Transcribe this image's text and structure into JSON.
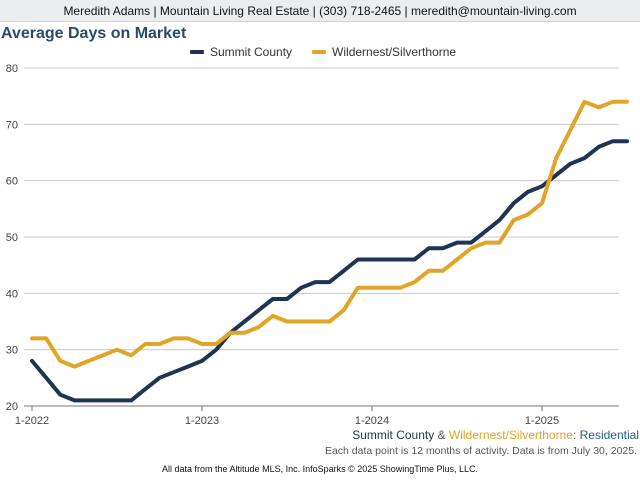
{
  "header": {
    "contact": "Meredith Adams | Mountain Living Real Estate | (303) 718-2465 | meredith@mountain-living.com"
  },
  "chart_data": {
    "type": "line",
    "title": "Average Days on Market",
    "xlabel": "",
    "ylabel": "",
    "ylim": [
      20,
      80
    ],
    "yticks": [
      "20",
      "30",
      "40",
      "50",
      "60",
      "70",
      "80"
    ],
    "xticks": [
      {
        "label": "1-2022",
        "index": 0
      },
      {
        "label": "1-2023",
        "index": 12
      },
      {
        "label": "1-2024",
        "index": 24
      },
      {
        "label": "1-2025",
        "index": 36
      }
    ],
    "x": [
      "2022-01",
      "2022-02",
      "2022-03",
      "2022-04",
      "2022-05",
      "2022-06",
      "2022-07",
      "2022-08",
      "2022-09",
      "2022-10",
      "2022-11",
      "2022-12",
      "2023-01",
      "2023-02",
      "2023-03",
      "2023-04",
      "2023-05",
      "2023-06",
      "2023-07",
      "2023-08",
      "2023-09",
      "2023-10",
      "2023-11",
      "2023-12",
      "2024-01",
      "2024-02",
      "2024-03",
      "2024-04",
      "2024-05",
      "2024-06",
      "2024-07",
      "2024-08",
      "2024-09",
      "2024-10",
      "2024-11",
      "2024-12",
      "2025-01",
      "2025-02",
      "2025-03",
      "2025-04",
      "2025-05",
      "2025-06",
      "2025-07"
    ],
    "grid": true,
    "legend_position": "top",
    "series": [
      {
        "name": "Summit County",
        "color": "#1f3352",
        "values": [
          28,
          25,
          22,
          21,
          21,
          21,
          21,
          21,
          23,
          25,
          26,
          27,
          28,
          30,
          33,
          35,
          37,
          39,
          39,
          41,
          42,
          42,
          44,
          46,
          46,
          46,
          46,
          46,
          48,
          48,
          49,
          49,
          51,
          53,
          56,
          58,
          59,
          61,
          63,
          64,
          66,
          67,
          67
        ]
      },
      {
        "name": "Wildernest/Silverthorne",
        "color": "#e0a526",
        "values": [
          32,
          32,
          28,
          27,
          28,
          29,
          30,
          29,
          31,
          31,
          32,
          32,
          31,
          31,
          33,
          33,
          34,
          36,
          35,
          35,
          35,
          35,
          37,
          41,
          41,
          41,
          41,
          42,
          44,
          44,
          46,
          48,
          49,
          49,
          53,
          54,
          56,
          64,
          69,
          74,
          73,
          74,
          74
        ]
      }
    ]
  },
  "caption": {
    "summit": "Summit County",
    "amp": " & ",
    "wildernest": "Wildernest/Silverthorne",
    "colon": ": ",
    "residential": "Residential",
    "note": "Each data point is 12 months of activity. Data is from July 30, 2025."
  },
  "colors": {
    "title": "#2b4a6b",
    "residential": "#2f5d8a",
    "grid": "#c8c8c8",
    "axis": "#777777"
  },
  "footer": {
    "text": "All data from the Altitude MLS, Inc. InfoSparks © 2025 ShowingTime Plus, LLC."
  }
}
